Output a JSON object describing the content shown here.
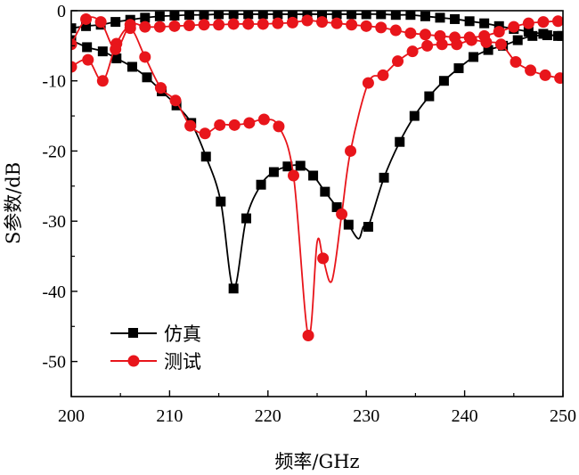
{
  "chart_data": {
    "type": "line",
    "title": "",
    "xlabel": "频率/GHz",
    "ylabel": "S参数/dB",
    "xlim": [
      200,
      250
    ],
    "ylim": [
      -55,
      0
    ],
    "xticks": [
      "200",
      "210",
      "220",
      "230",
      "240",
      "250"
    ],
    "yticks": [
      "0",
      "-10",
      "-20",
      "-30",
      "-40",
      "-50"
    ],
    "grid": false,
    "legend_position": "bottom-left",
    "legend": [
      {
        "name": "仿真",
        "color": "#000000",
        "marker": "square"
      },
      {
        "name": "测试",
        "color": "#e8151b",
        "marker": "circle"
      }
    ],
    "series": [
      {
        "name": "仿真",
        "role": "S11",
        "color": "#000000",
        "marker": "square",
        "x": [
          200,
          201.6,
          203.2,
          204.6,
          206.2,
          207.7,
          209.2,
          210.7,
          212.2,
          213.7,
          215.2,
          216.5,
          217.8,
          219.3,
          220.6,
          222.0,
          223.3,
          224.6,
          225.8,
          227.0,
          228.2,
          229.2,
          229.7,
          230.2,
          231.8,
          233.4,
          234.9,
          236.4,
          237.9,
          239.4,
          240.9,
          242.4,
          243.9,
          245.4,
          246.9,
          248.4,
          249.9
        ],
        "y": [
          -4.2,
          -5.2,
          -5.8,
          -6.8,
          -8.0,
          -9.5,
          -11.5,
          -13.5,
          -16.0,
          -20.8,
          -27.2,
          -39.6,
          -29.6,
          -24.8,
          -23.0,
          -22.2,
          -22.1,
          -23.5,
          -25.8,
          -28.0,
          -30.5,
          -32.5,
          -30.8,
          -30.8,
          -23.8,
          -18.7,
          -15.0,
          -12.2,
          -10.0,
          -8.2,
          -6.6,
          -5.6,
          -5.0,
          -4.2,
          -3.6,
          -3.5,
          -3.6
        ],
        "markers": [
          0,
          1,
          2,
          3,
          4,
          5,
          6,
          7,
          8,
          9,
          10,
          11,
          12,
          13,
          14,
          15,
          16,
          17,
          18,
          19,
          20,
          23,
          24,
          25,
          26,
          27,
          28,
          29,
          30,
          31,
          32,
          33,
          34,
          35,
          36
        ]
      },
      {
        "name": "仿真",
        "role": "S21",
        "color": "#000000",
        "marker": "square",
        "x": [
          200,
          201.5,
          203.0,
          204.5,
          206.0,
          207.5,
          209.0,
          210.5,
          212.0,
          213.5,
          215.0,
          216.5,
          218.0,
          219.5,
          221.0,
          222.5,
          224.0,
          225.5,
          227.0,
          228.5,
          230.0,
          231.5,
          233.0,
          234.5,
          236.0,
          237.5,
          239.0,
          240.5,
          242.0,
          243.5,
          245.0,
          246.5,
          248.0,
          249.5
        ],
        "y": [
          -2.5,
          -2.2,
          -2.0,
          -1.6,
          -1.3,
          -1.0,
          -0.8,
          -0.7,
          -0.6,
          -0.6,
          -0.5,
          -0.5,
          -0.5,
          -0.5,
          -0.5,
          -0.5,
          -0.5,
          -0.5,
          -0.5,
          -0.5,
          -0.5,
          -0.5,
          -0.6,
          -0.6,
          -0.8,
          -1.0,
          -1.2,
          -1.5,
          -1.8,
          -2.2,
          -2.6,
          -3.0,
          -3.3,
          -3.6
        ]
      },
      {
        "name": "测试",
        "role": "S11",
        "color": "#e8151b",
        "marker": "circle",
        "x": [
          200,
          201.7,
          203.2,
          204.6,
          206.0,
          207.5,
          209.1,
          210.6,
          212.1,
          213.6,
          215.1,
          216.6,
          218.1,
          219.6,
          221.1,
          222.6,
          224.1,
          225.0,
          225.6,
          226.5,
          227.5,
          228.4,
          230.2,
          231.7,
          233.2,
          234.7,
          236.2,
          237.7,
          239.2,
          240.7,
          242.2,
          243.7,
          245.2,
          246.7,
          248.2,
          249.7
        ],
        "y": [
          -8.0,
          -7.0,
          -10.0,
          -4.7,
          -2.5,
          -6.6,
          -11.0,
          -12.8,
          -16.4,
          -17.5,
          -16.3,
          -16.3,
          -16.0,
          -15.5,
          -16.5,
          -23.5,
          -46.3,
          -33.0,
          -35.3,
          -38.5,
          -29.0,
          -20.0,
          -10.3,
          -9.2,
          -7.2,
          -5.8,
          -5.0,
          -4.8,
          -4.8,
          -4.2,
          -4.5,
          -4.8,
          -7.3,
          -8.5,
          -9.2,
          -9.6
        ],
        "markers": [
          0,
          1,
          2,
          3,
          4,
          5,
          6,
          7,
          8,
          9,
          10,
          11,
          12,
          13,
          14,
          15,
          16,
          18,
          20,
          21,
          22,
          23,
          24,
          25,
          26,
          27,
          28,
          29,
          30,
          31,
          32,
          33,
          34,
          35
        ]
      },
      {
        "name": "测试",
        "role": "S21",
        "color": "#e8151b",
        "marker": "circle",
        "x": [
          200,
          201.5,
          203.0,
          204.5,
          206.0,
          207.5,
          209.0,
          210.5,
          212.0,
          213.5,
          215.0,
          216.5,
          218.0,
          219.5,
          221.0,
          222.5,
          224.0,
          225.5,
          227.0,
          228.5,
          230.0,
          231.5,
          233.0,
          234.5,
          236.0,
          237.5,
          239.0,
          240.5,
          242.0,
          243.5,
          245.0,
          246.5,
          248.0,
          249.5
        ],
        "y": [
          -4.8,
          -1.2,
          -1.6,
          -5.5,
          -2.0,
          -2.3,
          -2.3,
          -2.2,
          -2.1,
          -2.0,
          -2.0,
          -1.9,
          -1.9,
          -1.9,
          -1.8,
          -1.7,
          -1.4,
          -1.6,
          -1.8,
          -2.0,
          -2.2,
          -2.4,
          -2.8,
          -3.2,
          -3.4,
          -3.6,
          -3.8,
          -3.8,
          -3.6,
          -3.0,
          -2.3,
          -1.8,
          -1.6,
          -1.5
        ]
      }
    ]
  }
}
